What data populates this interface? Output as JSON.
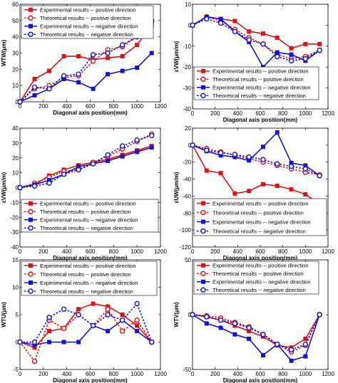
{
  "colors": {
    "red": "#e01010",
    "blue": "#1010e0"
  },
  "chart_data": [
    {
      "type": "line",
      "xlabel": "Diagonal axis position(mm)",
      "ylabel": "WTW(μm)",
      "xlim": [
        0,
        1200
      ],
      "ylim": [
        0,
        60
      ],
      "xticks": [
        0,
        200,
        400,
        600,
        800,
        1000,
        1200
      ],
      "yticks": [
        0,
        10,
        20,
        30,
        40,
        50,
        60
      ],
      "legend": "top-left",
      "series": [
        {
          "name": "Experimental results -- positive direction",
          "color": "red",
          "dash": false,
          "marker": "square",
          "x": [
            0,
            125,
            250,
            375,
            500,
            625,
            750,
            875,
            1000,
            1125
          ],
          "y": [
            0,
            14,
            19,
            28,
            28,
            26,
            27,
            28,
            35,
            47
          ]
        },
        {
          "name": "Theoretical results -- positive direction",
          "color": "red",
          "dash": true,
          "marker": "circle",
          "x": [
            0,
            125,
            250,
            375,
            500,
            625,
            750,
            875,
            1000,
            1125
          ],
          "y": [
            0,
            8,
            10,
            15,
            16,
            25,
            32,
            34,
            40,
            49
          ]
        },
        {
          "name": "Experimental results -- negative direction",
          "color": "blue",
          "dash": false,
          "marker": "square",
          "x": [
            0,
            125,
            250,
            375,
            500,
            625,
            750,
            875,
            1000,
            1125
          ],
          "y": [
            0,
            4,
            8,
            14,
            12,
            8,
            17,
            19,
            21,
            30
          ]
        },
        {
          "name": "Theoretical results -- negative direction",
          "color": "blue",
          "dash": true,
          "marker": "circle",
          "x": [
            0,
            125,
            250,
            375,
            500,
            625,
            750,
            875,
            1000,
            1125
          ],
          "y": [
            0,
            9,
            8,
            16,
            17,
            29,
            30,
            35,
            40,
            50
          ]
        }
      ]
    },
    {
      "type": "line",
      "xlabel": "Diagonal axis position(mm)",
      "ylabel": "εVW(μm/m)",
      "xlim": [
        0,
        1200
      ],
      "ylim": [
        -40,
        10
      ],
      "xticks": [
        0,
        200,
        400,
        600,
        800,
        1000,
        1200
      ],
      "yticks": [
        -40,
        -30,
        -20,
        -10,
        0,
        10
      ],
      "legend": "bottom-left",
      "series": [
        {
          "name": "Experimental results -- positive direction",
          "color": "red",
          "dash": false,
          "marker": "square",
          "x": [
            0,
            125,
            250,
            375,
            500,
            625,
            750,
            875,
            1000,
            1125
          ],
          "y": [
            0,
            4,
            3,
            2,
            -3,
            -4,
            -6,
            -11,
            -9,
            -9
          ]
        },
        {
          "name": "Theoretical results -- positive direction",
          "color": "red",
          "dash": true,
          "marker": "circle",
          "x": [
            0,
            125,
            250,
            375,
            500,
            625,
            750,
            875,
            1000,
            1125
          ],
          "y": [
            0,
            4,
            2,
            -2,
            -6,
            -9,
            -14,
            -16,
            -15,
            -12
          ]
        },
        {
          "name": "Experimental results -- negative direction",
          "color": "blue",
          "dash": false,
          "marker": "square",
          "x": [
            0,
            125,
            250,
            375,
            500,
            625,
            750,
            875,
            1000,
            1125
          ],
          "y": [
            0,
            4,
            3,
            -3,
            -8,
            -20,
            -13,
            -14,
            -17,
            -12
          ]
        },
        {
          "name": "Theoretical results -- negative direction",
          "color": "blue",
          "dash": true,
          "marker": "circle",
          "x": [
            0,
            125,
            250,
            375,
            500,
            625,
            750,
            875,
            1000,
            1125
          ],
          "y": [
            0,
            3,
            1,
            -3,
            -7,
            -9,
            -15,
            -17,
            -16,
            -12
          ]
        }
      ]
    },
    {
      "type": "line",
      "xlabel": "Diagonal axis position(mm)",
      "ylabel": "εVW(μm/m)",
      "xlim": [
        0,
        1200
      ],
      "ylim": [
        -40,
        40
      ],
      "xticks": [
        0,
        200,
        400,
        600,
        800,
        1000,
        1200
      ],
      "yticks": [
        -40,
        -30,
        -20,
        -10,
        0,
        10,
        20,
        30,
        40
      ],
      "legend": "bottom",
      "series": [
        {
          "name": "Experimental results -- positive direction",
          "color": "red",
          "dash": false,
          "marker": "square",
          "x": [
            0,
            125,
            250,
            375,
            500,
            625,
            750,
            875,
            1000,
            1125
          ],
          "y": [
            0,
            2,
            8,
            12,
            15,
            17,
            19,
            22,
            25,
            28
          ]
        },
        {
          "name": "Theoretical results -- positive direction",
          "color": "red",
          "dash": true,
          "marker": "circle",
          "x": [
            0,
            125,
            250,
            375,
            500,
            625,
            750,
            875,
            1000,
            1125
          ],
          "y": [
            0,
            3,
            7,
            11,
            12,
            17,
            21,
            26,
            31,
            36
          ]
        },
        {
          "name": "Experimental results -- negative direction",
          "color": "blue",
          "dash": false,
          "marker": "square",
          "x": [
            0,
            125,
            250,
            375,
            500,
            625,
            750,
            875,
            1000,
            1125
          ],
          "y": [
            0,
            2,
            5,
            9,
            14,
            16,
            18,
            21,
            24,
            27
          ]
        },
        {
          "name": "Theoretical results -- negative direction",
          "color": "blue",
          "dash": true,
          "marker": "circle",
          "x": [
            0,
            125,
            250,
            375,
            500,
            625,
            750,
            875,
            1000,
            1125
          ],
          "y": [
            0,
            1,
            3,
            9,
            12,
            16,
            22,
            28,
            32,
            35
          ]
        }
      ]
    },
    {
      "type": "line",
      "xlabel": "Diagonal axis position(mm)",
      "ylabel": "εUW(μm/m)",
      "xlim": [
        0,
        1200
      ],
      "ylim": [
        -120,
        20
      ],
      "xticks": [
        0,
        200,
        400,
        600,
        800,
        1000,
        1200
      ],
      "yticks": [
        -120,
        -100,
        -80,
        -60,
        -40,
        -20,
        0,
        20
      ],
      "legend": "bottom-left",
      "series": [
        {
          "name": "Experimental results -- positive direction",
          "color": "red",
          "dash": false,
          "marker": "square",
          "x": [
            0,
            125,
            250,
            375,
            500,
            625,
            750,
            875,
            1000,
            1125
          ],
          "y": [
            0,
            -30,
            -33,
            -57,
            -54,
            -46,
            -48,
            -52,
            -58,
            -69
          ]
        },
        {
          "name": "Theoretical results -- positive direction",
          "color": "red",
          "dash": true,
          "marker": "circle",
          "x": [
            0,
            125,
            250,
            375,
            500,
            625,
            750,
            875,
            1000,
            1125
          ],
          "y": [
            0,
            -4,
            -8,
            -12,
            -16,
            -20,
            -24,
            -28,
            -32,
            -35
          ]
        },
        {
          "name": "Experimental results -- negative direction",
          "color": "blue",
          "dash": false,
          "marker": "square",
          "x": [
            0,
            125,
            250,
            375,
            500,
            625,
            750,
            875,
            1000,
            1125
          ],
          "y": [
            0,
            -7,
            -12,
            -14,
            -18,
            -2,
            15,
            -21,
            -24,
            -36
          ]
        },
        {
          "name": "Theoretical results -- negative direction",
          "color": "blue",
          "dash": true,
          "marker": "circle",
          "x": [
            0,
            125,
            250,
            375,
            500,
            625,
            750,
            875,
            1000,
            1125
          ],
          "y": [
            0,
            -6,
            -9,
            -11,
            -14,
            -17,
            -22,
            -25,
            -28,
            -36
          ]
        }
      ]
    },
    {
      "type": "line",
      "xlabel": "Diagonal axis position(mm)",
      "ylabel": "WTU(μm)",
      "xlim": [
        0,
        1200
      ],
      "ylim": [
        -5,
        15
      ],
      "xticks": [
        0,
        200,
        400,
        600,
        800,
        1000,
        1200
      ],
      "yticks": [
        -5,
        0,
        5,
        10,
        15
      ],
      "legend": "top-left",
      "series": [
        {
          "name": "Experimental results -- positive direction",
          "color": "red",
          "dash": false,
          "marker": "square",
          "x": [
            0,
            125,
            250,
            375,
            500,
            625,
            750,
            875,
            1000,
            1125
          ],
          "y": [
            0,
            -1,
            2,
            2.5,
            6,
            7,
            6.5,
            5,
            3,
            0
          ]
        },
        {
          "name": "Theoretical results -- positive direction",
          "color": "red",
          "dash": true,
          "marker": "circle",
          "x": [
            0,
            125,
            250,
            375,
            500,
            625,
            750,
            875,
            1000,
            1125
          ],
          "y": [
            0,
            -3.5,
            4,
            2.5,
            5,
            3,
            6,
            2,
            4,
            0
          ]
        },
        {
          "name": "Experimental results -- negative direction",
          "color": "blue",
          "dash": false,
          "marker": "square",
          "x": [
            0,
            125,
            250,
            375,
            500,
            625,
            750,
            875,
            1000,
            1125
          ],
          "y": [
            0,
            -0.5,
            0,
            0,
            0,
            3,
            2,
            4,
            2,
            0
          ]
        },
        {
          "name": "Theoretical results -- negative direction",
          "color": "blue",
          "dash": true,
          "marker": "circle",
          "x": [
            0,
            125,
            250,
            375,
            500,
            625,
            750,
            875,
            1000,
            1125
          ],
          "y": [
            0,
            0,
            4.5,
            6,
            5,
            3,
            5,
            4,
            7,
            0
          ]
        }
      ]
    },
    {
      "type": "line",
      "xlabel": "Diagonal axis position(mm)",
      "ylabel": "WTV(μm)",
      "xlim": [
        0,
        1200
      ],
      "ylim": [
        -50,
        50
      ],
      "xticks": [
        0,
        200,
        400,
        600,
        800,
        1000,
        1200
      ],
      "yticks": [
        -50,
        0,
        50
      ],
      "legend": "top-right",
      "series": [
        {
          "name": "Experimental results -- positive direction",
          "color": "red",
          "dash": false,
          "marker": "square",
          "x": [
            0,
            125,
            250,
            375,
            500,
            625,
            750,
            875,
            1000,
            1125
          ],
          "y": [
            0,
            -2,
            -5,
            -10,
            -15,
            -20,
            -28,
            -30,
            -22,
            0
          ]
        },
        {
          "name": "Theoretical results -- positive direction",
          "color": "red",
          "dash": true,
          "marker": "circle",
          "x": [
            0,
            125,
            250,
            375,
            500,
            625,
            750,
            875,
            1000,
            1125
          ],
          "y": [
            0,
            -1,
            -3,
            -7,
            -11,
            -18,
            -27,
            -34,
            -28,
            0
          ]
        },
        {
          "name": "Experimental results -- negative direction",
          "color": "blue",
          "dash": false,
          "marker": "square",
          "x": [
            0,
            125,
            250,
            375,
            500,
            625,
            750,
            875,
            1000,
            1125
          ],
          "y": [
            0,
            -8,
            -12,
            -18,
            -22,
            -37,
            -27,
            -42,
            -38,
            0
          ]
        },
        {
          "name": "Theoretical results -- negative direction",
          "color": "blue",
          "dash": true,
          "marker": "circle",
          "x": [
            0,
            125,
            250,
            375,
            500,
            625,
            750,
            875,
            1000,
            1125
          ],
          "y": [
            0,
            -2,
            -5,
            -8,
            -12,
            -18,
            -27,
            -32,
            -27,
            0
          ]
        }
      ]
    }
  ]
}
